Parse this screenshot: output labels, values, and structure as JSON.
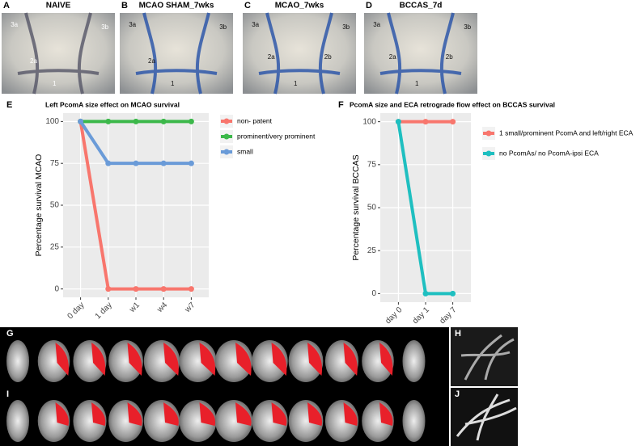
{
  "photos": [
    {
      "label": "A",
      "title": "NAIVE",
      "marks": [
        "3a",
        "3b",
        "2a",
        "1"
      ]
    },
    {
      "label": "B",
      "title": "MCAO SHAM_7wks",
      "marks": [
        "3a",
        "3b",
        "2a",
        "1"
      ]
    },
    {
      "label": "C",
      "title": "MCAO_7wks",
      "marks": [
        "3a",
        "3b",
        "2a",
        "2b",
        "1"
      ]
    },
    {
      "label": "D",
      "title": "BCCAS_7d",
      "marks": [
        "3a",
        "3b",
        "2a",
        "2b",
        "1"
      ]
    }
  ],
  "bottom_panels": [
    "G",
    "H",
    "I",
    "J"
  ],
  "chart_data": [
    {
      "type": "line",
      "label": "E",
      "title": "Left PcomA size effect on MCAO survival",
      "y_label": "Percentage survival MCAO",
      "categories": [
        "0 day",
        "1 day",
        "w1",
        "w4",
        "w7"
      ],
      "series": [
        {
          "name": "non- patent",
          "color": "#f8766d",
          "values": [
            100,
            0,
            0,
            0,
            0
          ]
        },
        {
          "name": "prominent/very prominent",
          "color": "#3cb84a",
          "values": [
            100,
            100,
            100,
            100,
            100
          ]
        },
        {
          "name": "small",
          "color": "#6a9bd8",
          "values": [
            100,
            75,
            75,
            75,
            75
          ]
        }
      ],
      "ylim": [
        -5,
        105
      ],
      "yticks": [
        0,
        25,
        50,
        75,
        100
      ],
      "grid": true
    },
    {
      "type": "line",
      "label": "F",
      "title": "PcomA size and ECA retrograde flow effect on BCCAS survival",
      "y_label": "Percentage survival BCCAS",
      "categories": [
        "day 0",
        "day 1",
        "day 7"
      ],
      "series": [
        {
          "name": "1 small/prominent PcomA and left/right ECA",
          "color": "#f8766d",
          "values": [
            100,
            100,
            100
          ]
        },
        {
          "name": "no PcomAs/ no PcomA-ipsi ECA",
          "color": "#1fbfc0",
          "values": [
            100,
            0,
            0
          ]
        }
      ],
      "ylim": [
        -5,
        105
      ],
      "yticks": [
        0,
        25,
        50,
        75,
        100
      ],
      "grid": true
    }
  ]
}
